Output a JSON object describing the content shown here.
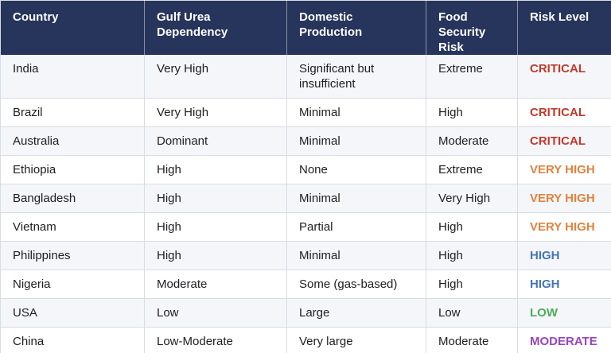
{
  "chart_data": {
    "type": "table",
    "title": "",
    "columns": [
      "Country",
      "Gulf Urea Dependency",
      "Domestic Production",
      "Food Security Risk",
      "Risk Level"
    ],
    "rows": [
      [
        "India",
        "Very High",
        "Significant but insufficient",
        "Extreme",
        "CRITICAL"
      ],
      [
        "Brazil",
        "Very High",
        "Minimal",
        "High",
        "CRITICAL"
      ],
      [
        "Australia",
        "Dominant",
        "Minimal",
        "Moderate",
        "CRITICAL"
      ],
      [
        "Ethiopia",
        "High",
        "None",
        "Extreme",
        "VERY HIGH"
      ],
      [
        "Bangladesh",
        "High",
        "Minimal",
        "Very High",
        "VERY HIGH"
      ],
      [
        "Vietnam",
        "High",
        "Partial",
        "High",
        "VERY HIGH"
      ],
      [
        "Philippines",
        "High",
        "Minimal",
        "High",
        "HIGH"
      ],
      [
        "Nigeria",
        "Moderate",
        "Some (gas-based)",
        "High",
        "HIGH"
      ],
      [
        "USA",
        "Low",
        "Large",
        "Low",
        "LOW"
      ],
      [
        "China",
        "Low-Moderate",
        "Very large",
        "Moderate",
        "MODERATE"
      ]
    ],
    "risk_level_colors": {
      "CRITICAL": "#c0392b",
      "VERY HIGH": "#e2823d",
      "HIGH": "#4576b5",
      "LOW": "#4faa5b",
      "MODERATE": "#9745bd"
    },
    "layout_hints": {
      "header_style": "dark navy band, white bold text, top-aligned",
      "row_striping": "odd rows light gray, even rows white",
      "grid_on": true
    }
  },
  "theme": {
    "header_bg": "#27355c",
    "header_text": "#ffffff",
    "row_alt_bg": "#f4f6f9",
    "row_bg": "#ffffff",
    "border": "#d9dce2",
    "body_text": "#1d1e20"
  }
}
